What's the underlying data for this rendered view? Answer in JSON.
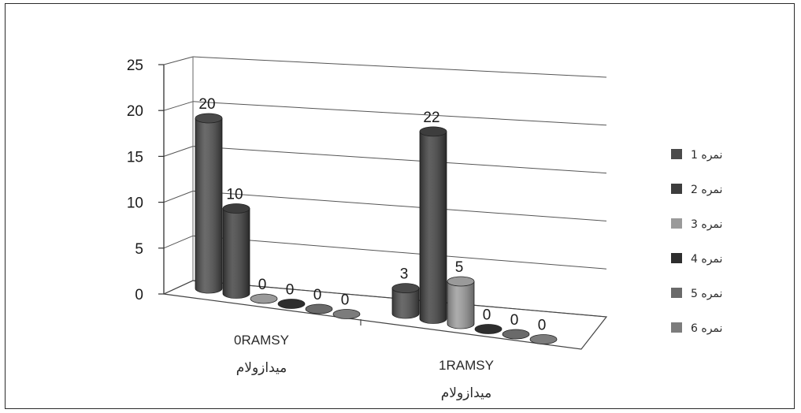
{
  "chart_data": {
    "type": "bar",
    "style": "3d-cylinder",
    "categories": [
      {
        "name": "0RAMSY",
        "sublabel": "میدازولام"
      },
      {
        "name": "1RAMSY",
        "sublabel": "میدازولام"
      }
    ],
    "series": [
      {
        "name": "نمره 1",
        "values": [
          20,
          3
        ],
        "color": "#4a4a4a"
      },
      {
        "name": "نمره 2",
        "values": [
          10,
          22
        ],
        "color": "#3d3d3d"
      },
      {
        "name": "نمره 3",
        "values": [
          0,
          5
        ],
        "color": "#9a9a9a"
      },
      {
        "name": "نمره 4",
        "values": [
          0,
          0
        ],
        "color": "#2e2e2e"
      },
      {
        "name": "نمره 5",
        "values": [
          0,
          0
        ],
        "color": "#6a6a6a"
      },
      {
        "name": "نمره 6",
        "values": [
          0,
          0
        ],
        "color": "#7c7c7c"
      }
    ],
    "ylim": [
      0,
      25
    ],
    "yticks": [
      "0",
      "5",
      "10",
      "15",
      "20",
      "25"
    ],
    "grid": true,
    "legend": "right",
    "title": "",
    "xlabel": "",
    "ylabel": ""
  }
}
